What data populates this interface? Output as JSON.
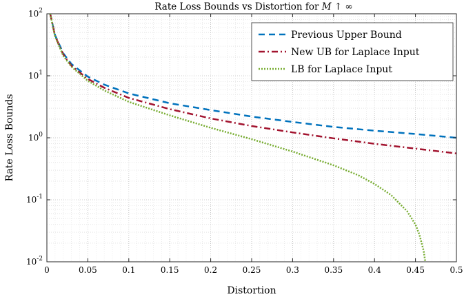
{
  "chart_data": {
    "type": "line",
    "title": "Rate Loss Bounds vs Distortion for",
    "title_math": "M ↑ ∞",
    "xlabel": "Distortion",
    "ylabel": "Rate Loss Bounds",
    "xlim": [
      0,
      0.5
    ],
    "ylim": [
      0.01,
      100
    ],
    "yscale": "log",
    "grid": "major and minor (dotted)",
    "legend_position": "top-right",
    "xticks": [
      0,
      0.05,
      0.1,
      0.15,
      0.2,
      0.25,
      0.3,
      0.35,
      0.4,
      0.45,
      0.5
    ],
    "xtick_labels": [
      "0",
      "0.05",
      "0.1",
      "0.15",
      "0.2",
      "0.25",
      "0.3",
      "0.35",
      "0.4",
      "0.45",
      "0.5"
    ],
    "yticks": [
      {
        "base": "10",
        "exp": "-2",
        "value": 0.01
      },
      {
        "base": "10",
        "exp": "-1",
        "value": 0.1
      },
      {
        "base": "10",
        "exp": "0",
        "value": 1
      },
      {
        "base": "10",
        "exp": "1",
        "value": 10
      },
      {
        "base": "10",
        "exp": "2",
        "value": 100
      }
    ],
    "series": [
      {
        "name": "Previous Upper Bound",
        "color": "#0072BD",
        "style": "dashed",
        "x": [
          0.004,
          0.01,
          0.02,
          0.03,
          0.05,
          0.07,
          0.1,
          0.15,
          0.2,
          0.25,
          0.3,
          0.35,
          0.4,
          0.45,
          0.5
        ],
        "y": [
          100,
          45,
          23,
          15.5,
          9.7,
          7.2,
          5.2,
          3.6,
          2.8,
          2.2,
          1.8,
          1.5,
          1.3,
          1.15,
          1.0
        ]
      },
      {
        "name": "New UB for Laplace Input",
        "color": "#A2142F",
        "style": "dash-dot",
        "x": [
          0.004,
          0.01,
          0.02,
          0.03,
          0.05,
          0.07,
          0.1,
          0.15,
          0.2,
          0.25,
          0.3,
          0.35,
          0.4,
          0.45,
          0.5
        ],
        "y": [
          100,
          44,
          22,
          14.5,
          8.9,
          6.4,
          4.4,
          2.9,
          2.05,
          1.55,
          1.22,
          0.98,
          0.8,
          0.67,
          0.56
        ]
      },
      {
        "name": "LB for Laplace Input",
        "color": "#77AC30",
        "style": "dotted",
        "x": [
          0.004,
          0.01,
          0.02,
          0.03,
          0.05,
          0.07,
          0.1,
          0.15,
          0.2,
          0.25,
          0.3,
          0.35,
          0.38,
          0.4,
          0.42,
          0.44,
          0.45,
          0.455,
          0.46,
          0.462
        ],
        "y": [
          100,
          43,
          21,
          14,
          8.3,
          5.8,
          3.8,
          2.3,
          1.45,
          0.95,
          0.6,
          0.36,
          0.25,
          0.18,
          0.12,
          0.065,
          0.04,
          0.027,
          0.015,
          0.01
        ]
      }
    ]
  }
}
